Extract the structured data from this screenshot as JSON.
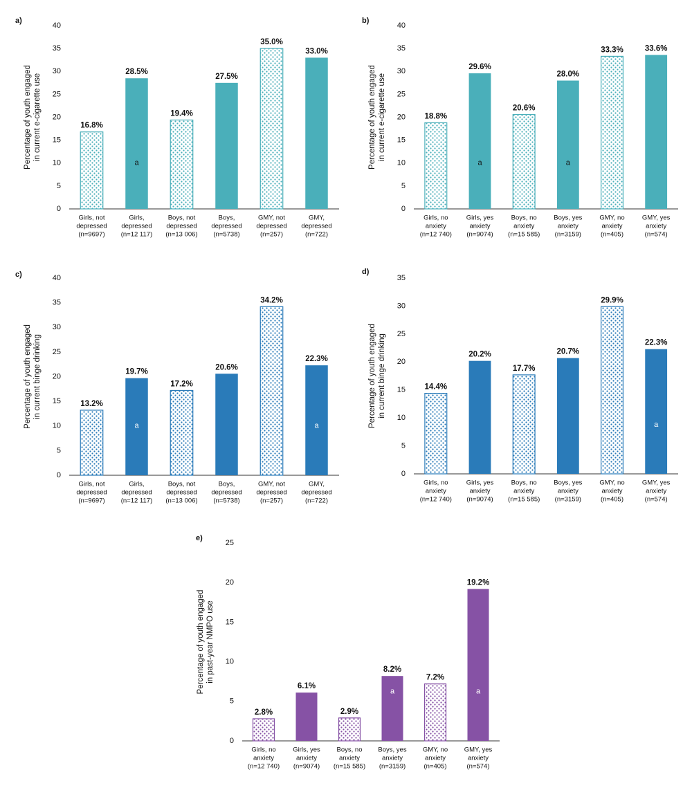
{
  "chart_data": [
    {
      "type": "bar",
      "panel": "a)",
      "ylabel": [
        "Percentage of youth engaged",
        "in current e-cigarette use"
      ],
      "categories": [
        [
          "Girls, not",
          "depressed",
          "(n=9697)"
        ],
        [
          "Girls,",
          "depressed",
          "(n=12 117)"
        ],
        [
          "Boys, not",
          "depressed",
          "(n=13 006)"
        ],
        [
          "Boys,",
          "depressed",
          "(n=5738)"
        ],
        [
          "GMY, not",
          "depressed",
          "(n=257)"
        ],
        [
          "GMY,",
          "depressed",
          "(n=722)"
        ]
      ],
      "values": [
        16.8,
        28.5,
        19.4,
        27.5,
        35.0,
        33.0
      ],
      "value_labels": [
        "16.8%",
        "28.5%",
        "19.4%",
        "27.5%",
        "35.0%",
        "33.0%"
      ],
      "patterned": [
        true,
        false,
        true,
        false,
        true,
        false
      ],
      "notes": [
        null,
        "a",
        null,
        null,
        null,
        null
      ],
      "note_color": "#111111",
      "color": "#4aafba",
      "ylim": [
        0,
        40
      ],
      "yticks": [
        0,
        5,
        10,
        15,
        20,
        25,
        30,
        35,
        40
      ]
    },
    {
      "type": "bar",
      "panel": "b)",
      "ylabel": [
        "Percentage of youth engaged",
        "in current e-cigarette use"
      ],
      "categories": [
        [
          "Girls, no",
          "anxiety",
          "(n=12 740)"
        ],
        [
          "Girls, yes",
          "anxiety",
          "(n=9074)"
        ],
        [
          "Boys, no",
          "anxiety",
          "(n=15 585)"
        ],
        [
          "Boys, yes",
          "anxiety",
          "(n=3159)"
        ],
        [
          "GMY, no",
          "anxiety",
          "(n=405)"
        ],
        [
          "GMY, yes",
          "anxiety",
          "(n=574)"
        ]
      ],
      "values": [
        18.8,
        29.6,
        20.6,
        28.0,
        33.3,
        33.6
      ],
      "value_labels": [
        "18.8%",
        "29.6%",
        "20.6%",
        "28.0%",
        "33.3%",
        "33.6%"
      ],
      "patterned": [
        true,
        false,
        true,
        false,
        true,
        false
      ],
      "notes": [
        null,
        "a",
        null,
        "a",
        null,
        null
      ],
      "note_color": "#111111",
      "color": "#4aafba",
      "ylim": [
        0,
        40
      ],
      "yticks": [
        0,
        5,
        10,
        15,
        20,
        25,
        30,
        35,
        40
      ]
    },
    {
      "type": "bar",
      "panel": "c)",
      "ylabel": [
        "Percentage of youth engaged",
        "in current binge drinking"
      ],
      "categories": [
        [
          "Girls, not",
          "depressed",
          "(n=9697)"
        ],
        [
          "Girls,",
          "depressed",
          "(n=12 117)"
        ],
        [
          "Boys, not",
          "depressed",
          "(n=13 006)"
        ],
        [
          "Boys,",
          "depressed",
          "(n=5738)"
        ],
        [
          "GMY, not",
          "depressed",
          "(n=257)"
        ],
        [
          "GMY,",
          "depressed",
          "(n=722)"
        ]
      ],
      "values": [
        13.2,
        19.7,
        17.2,
        20.6,
        34.2,
        22.3
      ],
      "value_labels": [
        "13.2%",
        "19.7%",
        "17.2%",
        "20.6%",
        "34.2%",
        "22.3%"
      ],
      "patterned": [
        true,
        false,
        true,
        false,
        true,
        false
      ],
      "notes": [
        null,
        "a",
        null,
        null,
        null,
        "a"
      ],
      "note_color": "#ffffff",
      "color": "#2a7bb9",
      "ylim": [
        0,
        40
      ],
      "yticks": [
        0,
        5,
        10,
        15,
        20,
        25,
        30,
        35,
        40
      ]
    },
    {
      "type": "bar",
      "panel": "d)",
      "ylabel": [
        "Percentage of youth engaged",
        "in current binge drinking"
      ],
      "categories": [
        [
          "Girls, no",
          "anxiety",
          "(n=12 740)"
        ],
        [
          "Girls, yes",
          "anxiety",
          "(n=9074)"
        ],
        [
          "Boys, no",
          "anxiety",
          "(n=15 585)"
        ],
        [
          "Boys, yes",
          "anxiety",
          "(n=3159)"
        ],
        [
          "GMY, no",
          "anxiety",
          "(n=405)"
        ],
        [
          "GMY, yes",
          "anxiety",
          "(n=574)"
        ]
      ],
      "values": [
        14.4,
        20.2,
        17.7,
        20.7,
        29.9,
        22.3
      ],
      "value_labels": [
        "14.4%",
        "20.2%",
        "17.7%",
        "20.7%",
        "29.9%",
        "22.3%"
      ],
      "patterned": [
        true,
        false,
        true,
        false,
        true,
        false
      ],
      "notes": [
        null,
        null,
        null,
        null,
        null,
        "a"
      ],
      "note_color": "#ffffff",
      "color": "#2a7bb9",
      "ylim": [
        0,
        35
      ],
      "yticks": [
        0,
        5,
        10,
        15,
        20,
        25,
        30,
        35
      ]
    },
    {
      "type": "bar",
      "panel": "e)",
      "ylabel": [
        "Percentage of youth engaged",
        "in past-year NMPO use"
      ],
      "categories": [
        [
          "Girls, no",
          "anxiety",
          "(n=12 740)"
        ],
        [
          "Girls, yes",
          "anxiety",
          "(n=9074)"
        ],
        [
          "Boys, no",
          "anxiety",
          "(n=15 585)"
        ],
        [
          "Boys, yes",
          "anxiety",
          "(n=3159)"
        ],
        [
          "GMY, no",
          "anxiety",
          "(n=405)"
        ],
        [
          "GMY, yes",
          "anxiety",
          "(n=574)"
        ]
      ],
      "values": [
        2.8,
        6.1,
        2.9,
        8.2,
        7.2,
        19.2
      ],
      "value_labels": [
        "2.8%",
        "6.1%",
        "2.9%",
        "8.2%",
        "7.2%",
        "19.2%"
      ],
      "patterned": [
        true,
        false,
        true,
        false,
        true,
        false
      ],
      "notes": [
        null,
        null,
        null,
        "a",
        null,
        "a"
      ],
      "note_color": "#ffffff",
      "color": "#8652a5",
      "ylim": [
        0,
        25
      ],
      "yticks": [
        0,
        5,
        10,
        15,
        20,
        25
      ]
    }
  ]
}
